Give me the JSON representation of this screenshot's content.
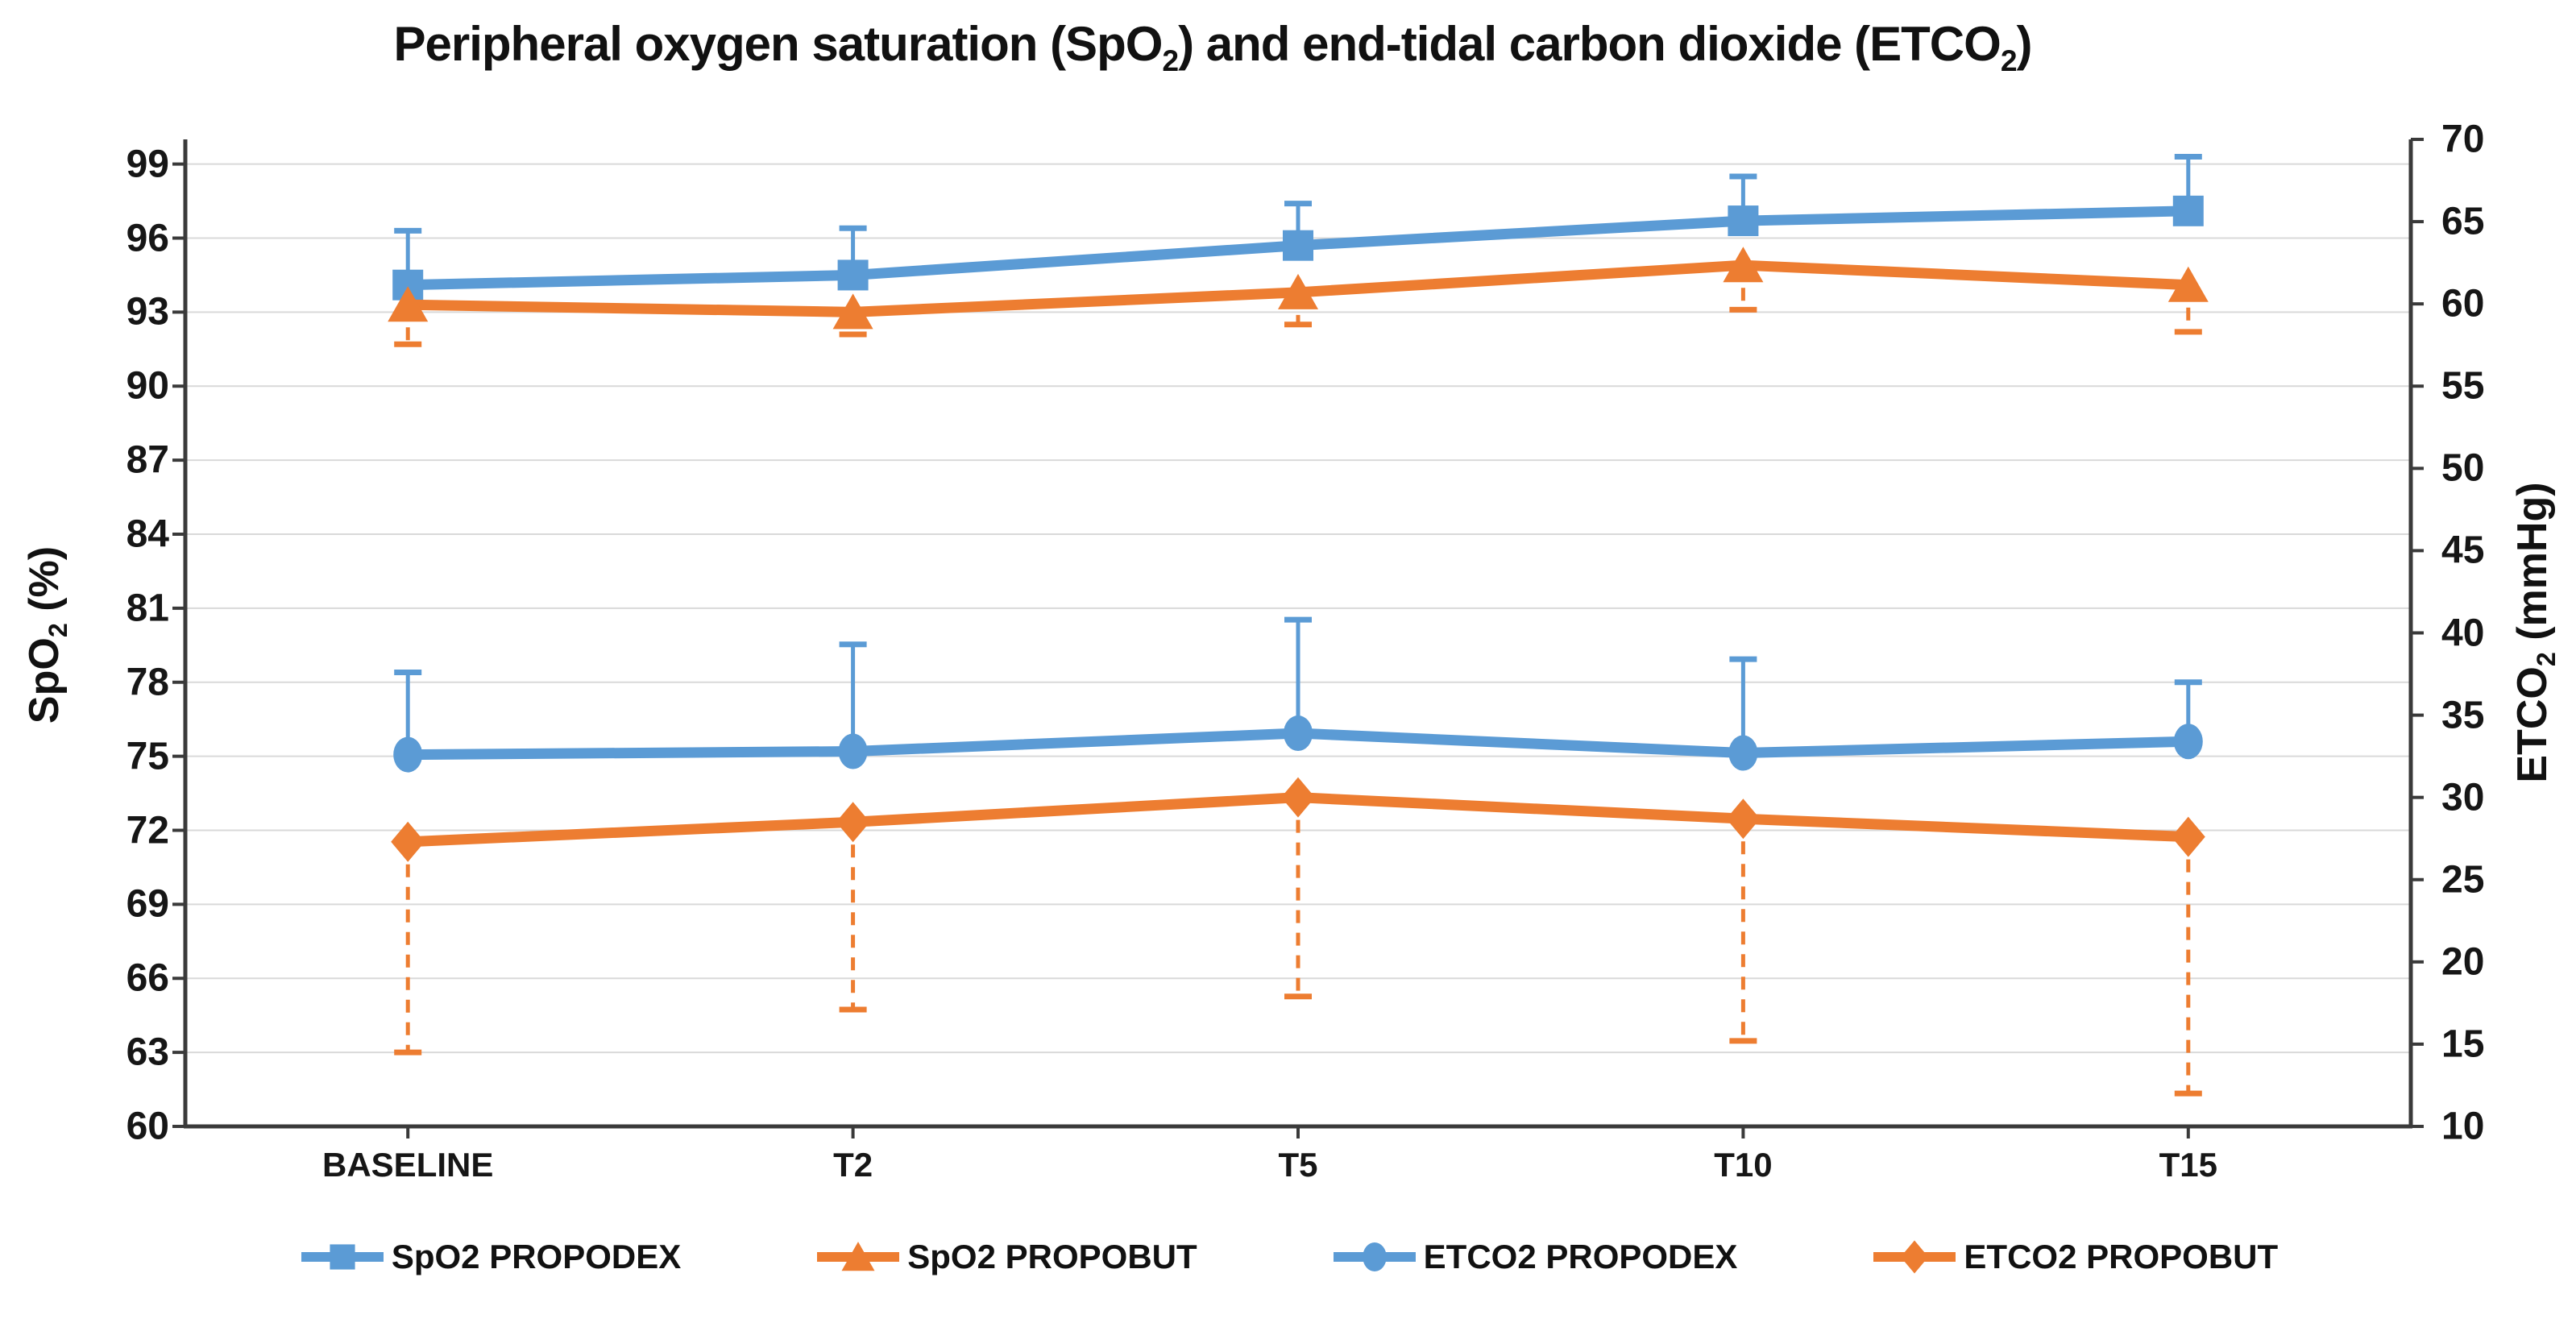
{
  "title": {
    "pre": "Peripheral oxygen saturation (SpO",
    "sub1": "2",
    "mid": ") and end-tidal carbon dioxide (ETCO",
    "sub2": "2",
    "post": ")"
  },
  "left_axis_title": {
    "main": "SpO",
    "sub": "2",
    "rest": " (%)"
  },
  "right_axis_title": {
    "main": "ETCO",
    "sub": "2",
    "rest": " (mmHg)"
  },
  "colors": {
    "blue": "#5B9BD5",
    "orange": "#ED7D31",
    "gridline": "#D9D9D9",
    "axis_line": "#3a3a3a",
    "text": "#111111"
  },
  "chart_data": {
    "type": "line",
    "title": "Peripheral oxygen saturation (SpO2) and end-tidal carbon dioxide (ETCO2)",
    "categories": [
      "BASELINE",
      "T2",
      "T5",
      "T10",
      "T15"
    ],
    "left_axis": {
      "label": "SpO2 (%)",
      "min": 60,
      "max": 100,
      "tick_step": 3,
      "ticks": [
        99,
        96,
        93,
        90,
        87,
        84,
        81,
        78,
        75,
        72,
        69,
        66,
        63,
        60
      ]
    },
    "right_axis": {
      "label": "ETCO2 (mmHg)",
      "min": 10,
      "max": 70,
      "tick_step": 5,
      "ticks": [
        70,
        65,
        60,
        55,
        50,
        45,
        40,
        35,
        30,
        25,
        20,
        15,
        10
      ]
    },
    "grid": "horizontal-left-ticks",
    "legend_position": "bottom",
    "series": [
      {
        "name": "SpO2 PROPODEX",
        "axis": "left",
        "marker": "square",
        "color": "#5B9BD5",
        "values": [
          94.1,
          94.5,
          95.7,
          96.7,
          97.1
        ],
        "error_dir": "plus",
        "error_style": "solid",
        "error_caps": [
          96.3,
          96.4,
          97.4,
          98.5,
          99.3
        ]
      },
      {
        "name": "SpO2 PROPOBUT",
        "axis": "left",
        "marker": "triangle",
        "color": "#ED7D31",
        "values": [
          93.3,
          93.0,
          93.8,
          94.9,
          94.1
        ],
        "error_dir": "minus",
        "error_style": "dashed",
        "error_caps": [
          91.7,
          92.1,
          92.5,
          93.1,
          92.2
        ]
      },
      {
        "name": "ETCO2 PROPODEX",
        "axis": "right",
        "marker": "circle",
        "color": "#5B9BD5",
        "values": [
          32.6,
          32.8,
          33.9,
          32.7,
          33.4
        ],
        "error_dir": "plus",
        "error_style": "solid",
        "error_caps": [
          37.6,
          39.3,
          40.8,
          38.4,
          37.0
        ]
      },
      {
        "name": "ETCO2 PROPOBUT",
        "axis": "right",
        "marker": "diamond",
        "color": "#ED7D31",
        "values": [
          27.3,
          28.5,
          30.0,
          28.7,
          27.6
        ],
        "error_dir": "minus",
        "error_style": "dashed",
        "error_caps": [
          14.5,
          17.1,
          17.9,
          15.2,
          12.0
        ]
      }
    ]
  }
}
